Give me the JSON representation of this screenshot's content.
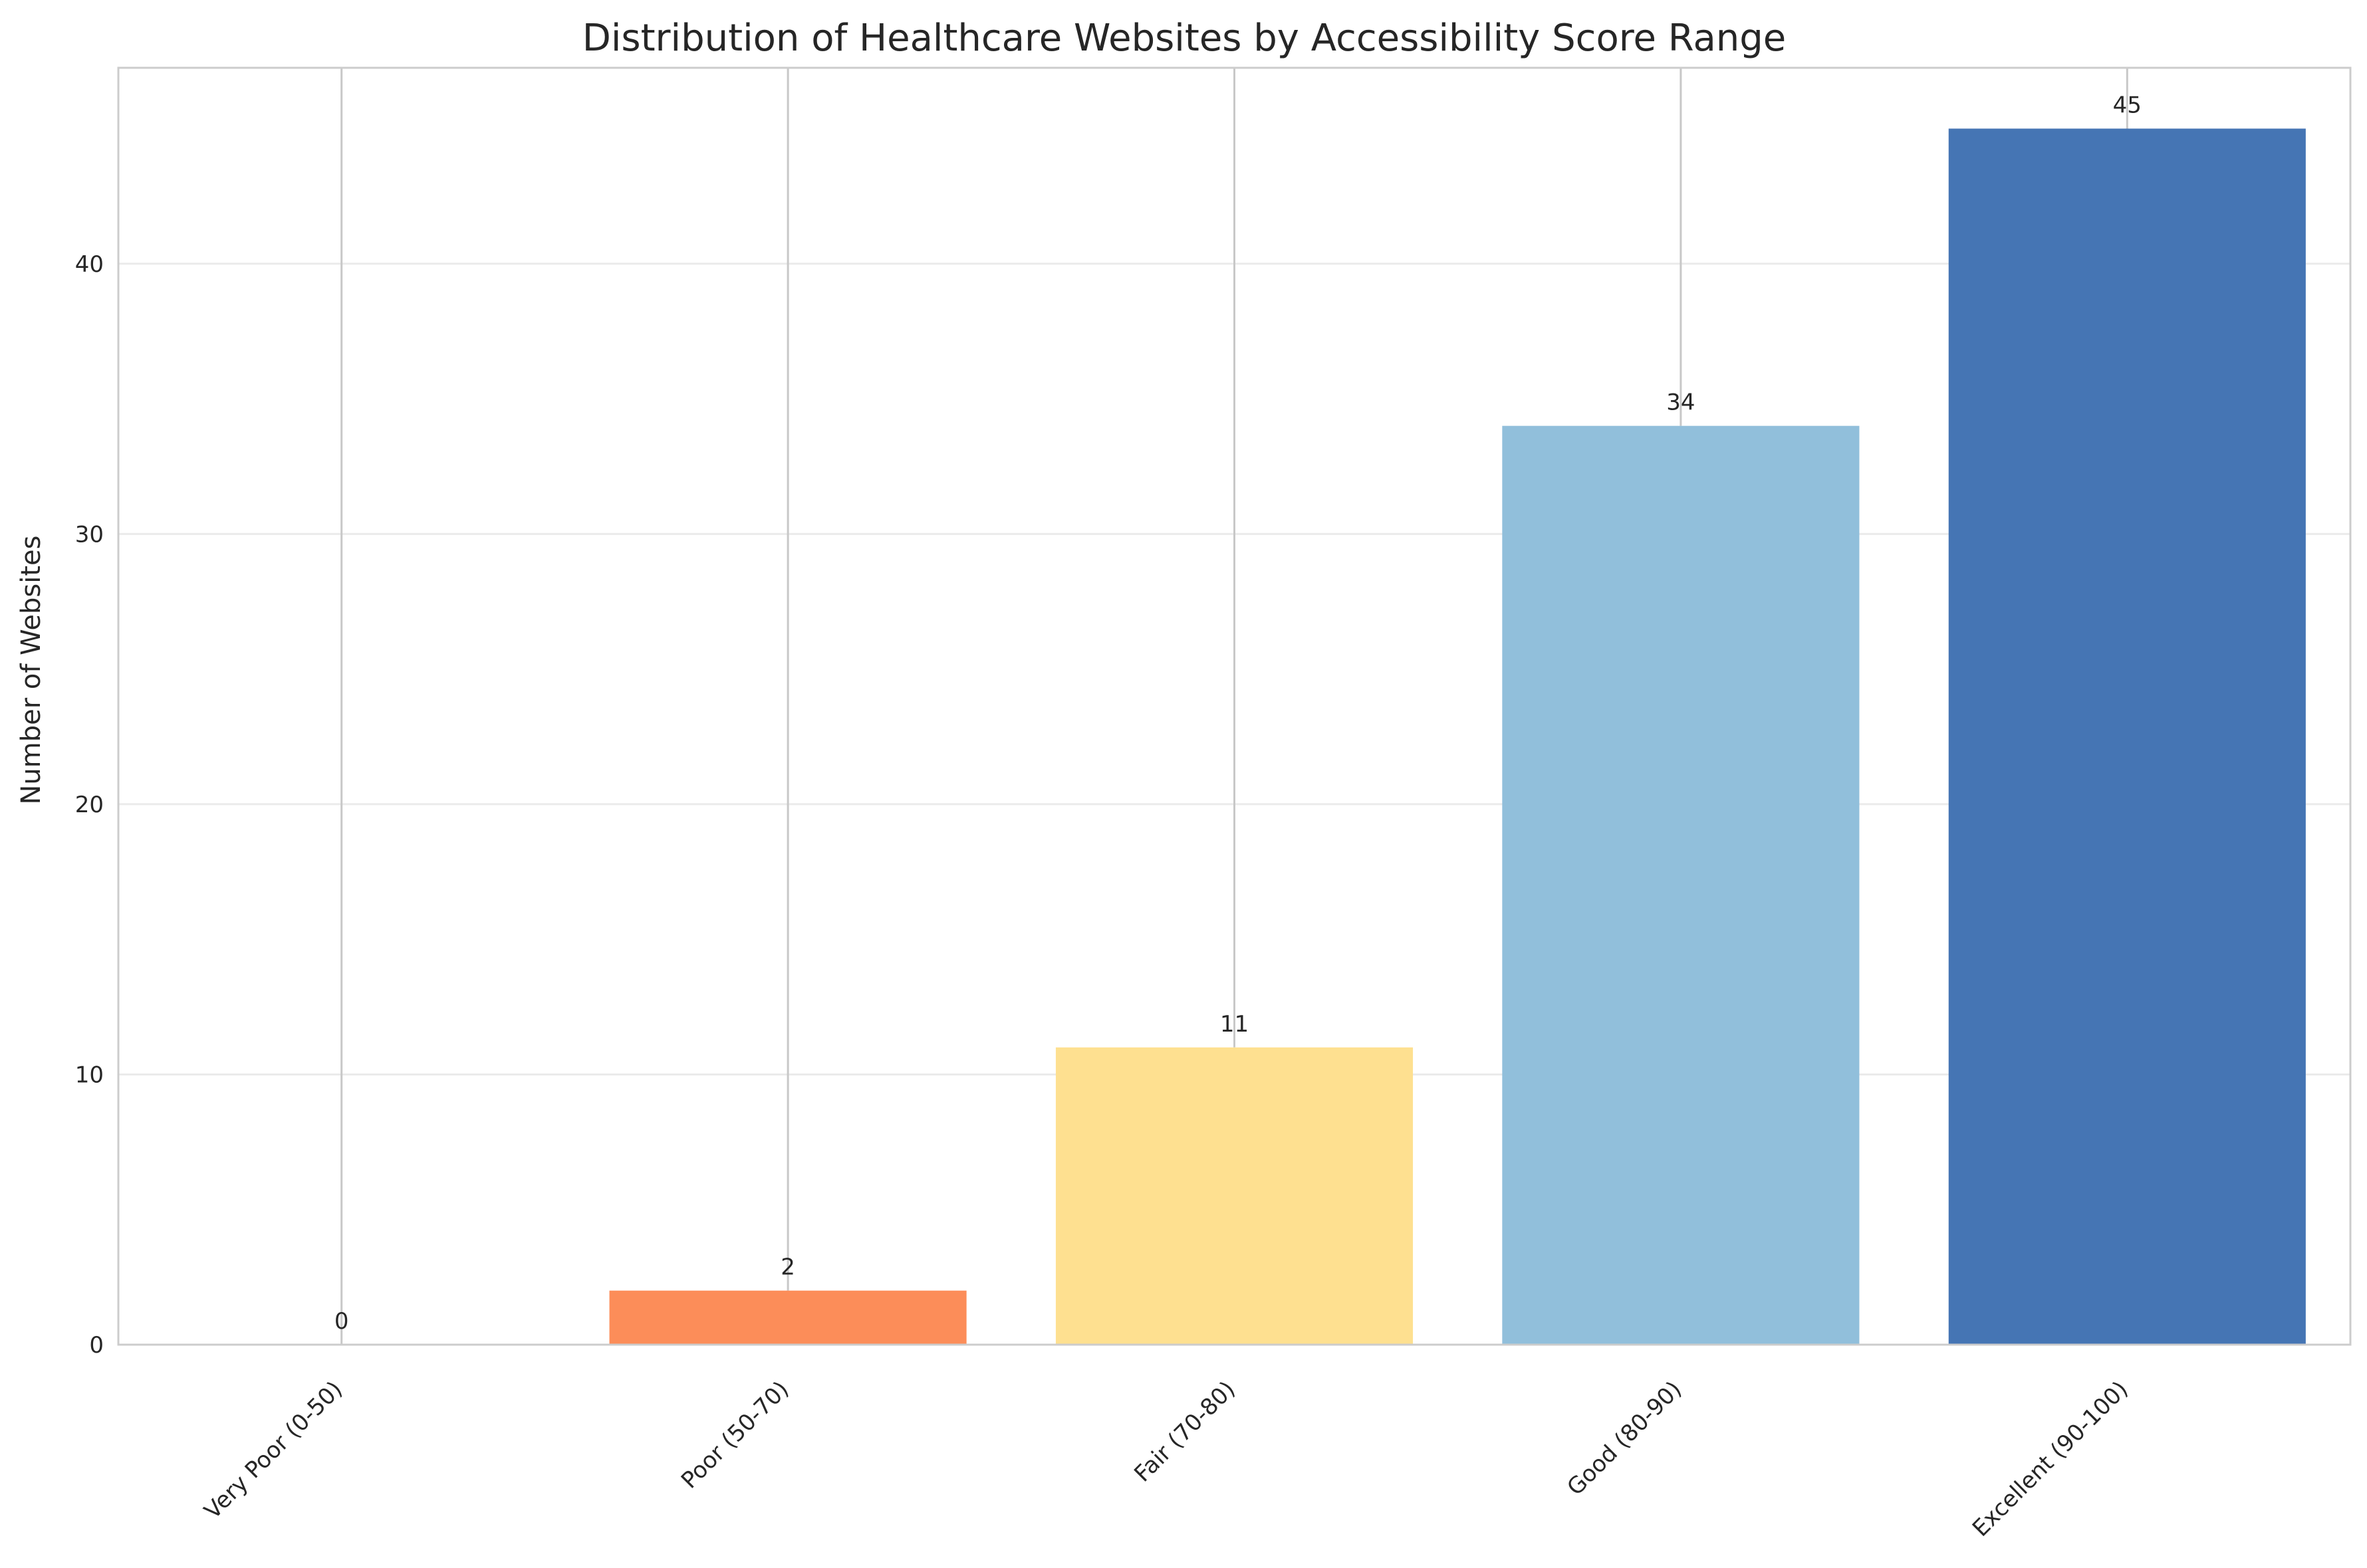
{
  "chart_data": {
    "type": "bar",
    "title": "Distribution of Healthcare Websites by Accessibility Score Range",
    "xlabel": "",
    "ylabel": "Number of Websites",
    "categories": [
      "Very Poor (0-50)",
      "Poor (50-70)",
      "Fair (70-80)",
      "Good (80-90)",
      "Excellent (90-100)"
    ],
    "values": [
      0,
      2,
      11,
      34,
      45
    ],
    "data_labels": [
      "0",
      "2",
      "11",
      "34",
      "45"
    ],
    "colors": [
      "#d73027",
      "#fc8d59",
      "#fee090",
      "#91bfdb",
      "#4575b4"
    ],
    "yticks": [
      0,
      10,
      20,
      30,
      40
    ],
    "ylim": [
      0,
      47.25
    ],
    "grid": "horizontal",
    "legend": "none"
  }
}
